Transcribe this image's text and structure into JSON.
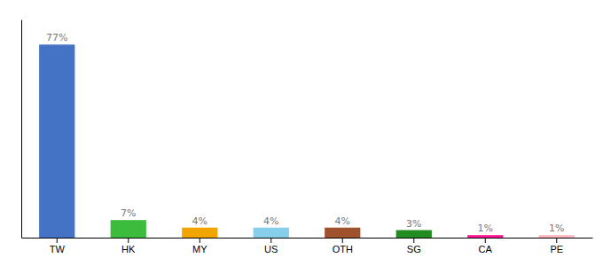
{
  "chart_data": {
    "type": "bar",
    "categories": [
      "TW",
      "HK",
      "MY",
      "US",
      "OTH",
      "SG",
      "CA",
      "PE"
    ],
    "values": [
      77,
      7,
      4,
      4,
      4,
      3,
      1,
      1
    ],
    "value_labels": [
      "77%",
      "7%",
      "4%",
      "4%",
      "4%",
      "3%",
      "1%",
      "1%"
    ],
    "colors": [
      "#4472c4",
      "#3dbb3d",
      "#f0a500",
      "#87ceeb",
      "#a0522d",
      "#228b22",
      "#ff1493",
      "#ffb6c1"
    ],
    "ylim": [
      0,
      87
    ],
    "data_labels": true,
    "tick_labels": "x"
  }
}
